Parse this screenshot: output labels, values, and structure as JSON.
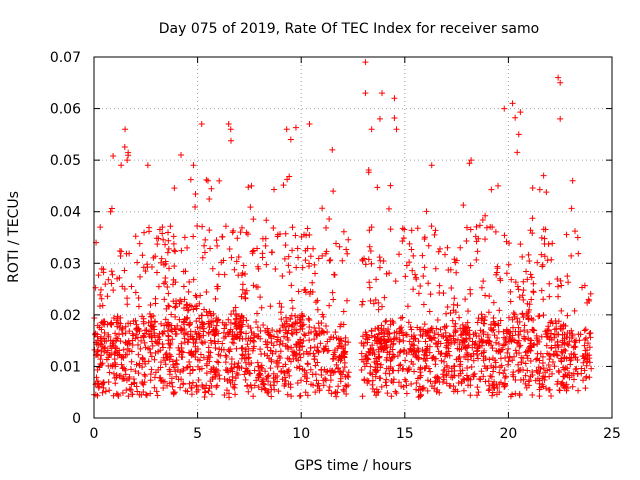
{
  "chart_data": {
    "type": "scatter",
    "title": "Day 075 of 2019, Rate Of TEC Index for receiver samo",
    "xlabel": "GPS time / hours",
    "ylabel": "ROTI / TECUs",
    "xlim": [
      0,
      25
    ],
    "ylim": [
      0,
      0.07
    ],
    "xticks": [
      0,
      5,
      10,
      15,
      20,
      25
    ],
    "xtick_labels": [
      "0",
      "5",
      "10",
      "15",
      "20",
      "25"
    ],
    "yticks": [
      0,
      0.01,
      0.02,
      0.03,
      0.04,
      0.05,
      0.06,
      0.07
    ],
    "ytick_labels": [
      "0",
      "0.01",
      "0.02",
      "0.03",
      "0.04",
      "0.05",
      "0.06",
      "0.07"
    ],
    "grid": true,
    "marker": "+",
    "color": "#ff0000",
    "data_gap_hours": [
      12.3,
      12.9
    ],
    "envelope_hours": [
      0,
      0.5,
      1,
      1.5,
      2,
      2.5,
      3,
      3.5,
      4,
      4.5,
      5,
      5.5,
      6,
      6.5,
      7,
      7.5,
      8,
      8.5,
      9,
      9.5,
      10,
      10.5,
      11,
      11.5,
      12,
      13,
      13.5,
      14,
      14.5,
      15,
      15.5,
      16,
      16.5,
      17,
      17.5,
      18,
      18.5,
      19,
      19.5,
      20,
      20.5,
      21,
      21.5,
      22,
      22.5,
      23,
      23.5,
      24
    ],
    "envelope_typical": [
      0.012,
      0.013,
      0.014,
      0.013,
      0.013,
      0.014,
      0.014,
      0.015,
      0.016,
      0.016,
      0.015,
      0.015,
      0.014,
      0.014,
      0.014,
      0.013,
      0.012,
      0.012,
      0.013,
      0.014,
      0.014,
      0.013,
      0.012,
      0.011,
      0.011,
      0.011,
      0.012,
      0.013,
      0.013,
      0.012,
      0.012,
      0.012,
      0.012,
      0.012,
      0.012,
      0.013,
      0.014,
      0.014,
      0.014,
      0.014,
      0.014,
      0.014,
      0.014,
      0.013,
      0.013,
      0.012,
      0.012,
      0.012
    ],
    "envelope_max": [
      0.037,
      0.033,
      0.055,
      0.056,
      0.042,
      0.049,
      0.037,
      0.04,
      0.051,
      0.047,
      0.057,
      0.046,
      0.045,
      0.058,
      0.044,
      0.045,
      0.04,
      0.042,
      0.049,
      0.056,
      0.057,
      0.046,
      0.043,
      0.052,
      0.038,
      0.069,
      0.056,
      0.058,
      0.062,
      0.048,
      0.046,
      0.041,
      0.049,
      0.035,
      0.034,
      0.05,
      0.048,
      0.045,
      0.043,
      0.06,
      0.061,
      0.053,
      0.05,
      0.054,
      0.066,
      0.045,
      0.038,
      0.031
    ],
    "notable_points": [
      [
        0.1,
        0.034
      ],
      [
        0.3,
        0.037
      ],
      [
        0.8,
        0.04
      ],
      [
        1.5,
        0.056
      ],
      [
        1.6,
        0.05
      ],
      [
        2.6,
        0.049
      ],
      [
        3.3,
        0.037
      ],
      [
        4.2,
        0.051
      ],
      [
        4.8,
        0.049
      ],
      [
        5.2,
        0.057
      ],
      [
        5.5,
        0.046
      ],
      [
        6.5,
        0.057
      ],
      [
        6.6,
        0.056
      ],
      [
        7.6,
        0.045
      ],
      [
        9.3,
        0.056
      ],
      [
        9.5,
        0.054
      ],
      [
        10.4,
        0.057
      ],
      [
        11.5,
        0.052
      ],
      [
        13.1,
        0.069
      ],
      [
        13.1,
        0.063
      ],
      [
        13.4,
        0.056
      ],
      [
        13.8,
        0.058
      ],
      [
        13.9,
        0.063
      ],
      [
        14.5,
        0.062
      ],
      [
        14.6,
        0.056
      ],
      [
        16.3,
        0.049
      ],
      [
        18.2,
        0.05
      ],
      [
        19.5,
        0.045
      ],
      [
        19.8,
        0.06
      ],
      [
        20.2,
        0.061
      ],
      [
        20.5,
        0.055
      ],
      [
        21.7,
        0.047
      ],
      [
        22.4,
        0.066
      ],
      [
        22.5,
        0.065
      ],
      [
        22.5,
        0.058
      ],
      [
        23.1,
        0.046
      ]
    ]
  }
}
